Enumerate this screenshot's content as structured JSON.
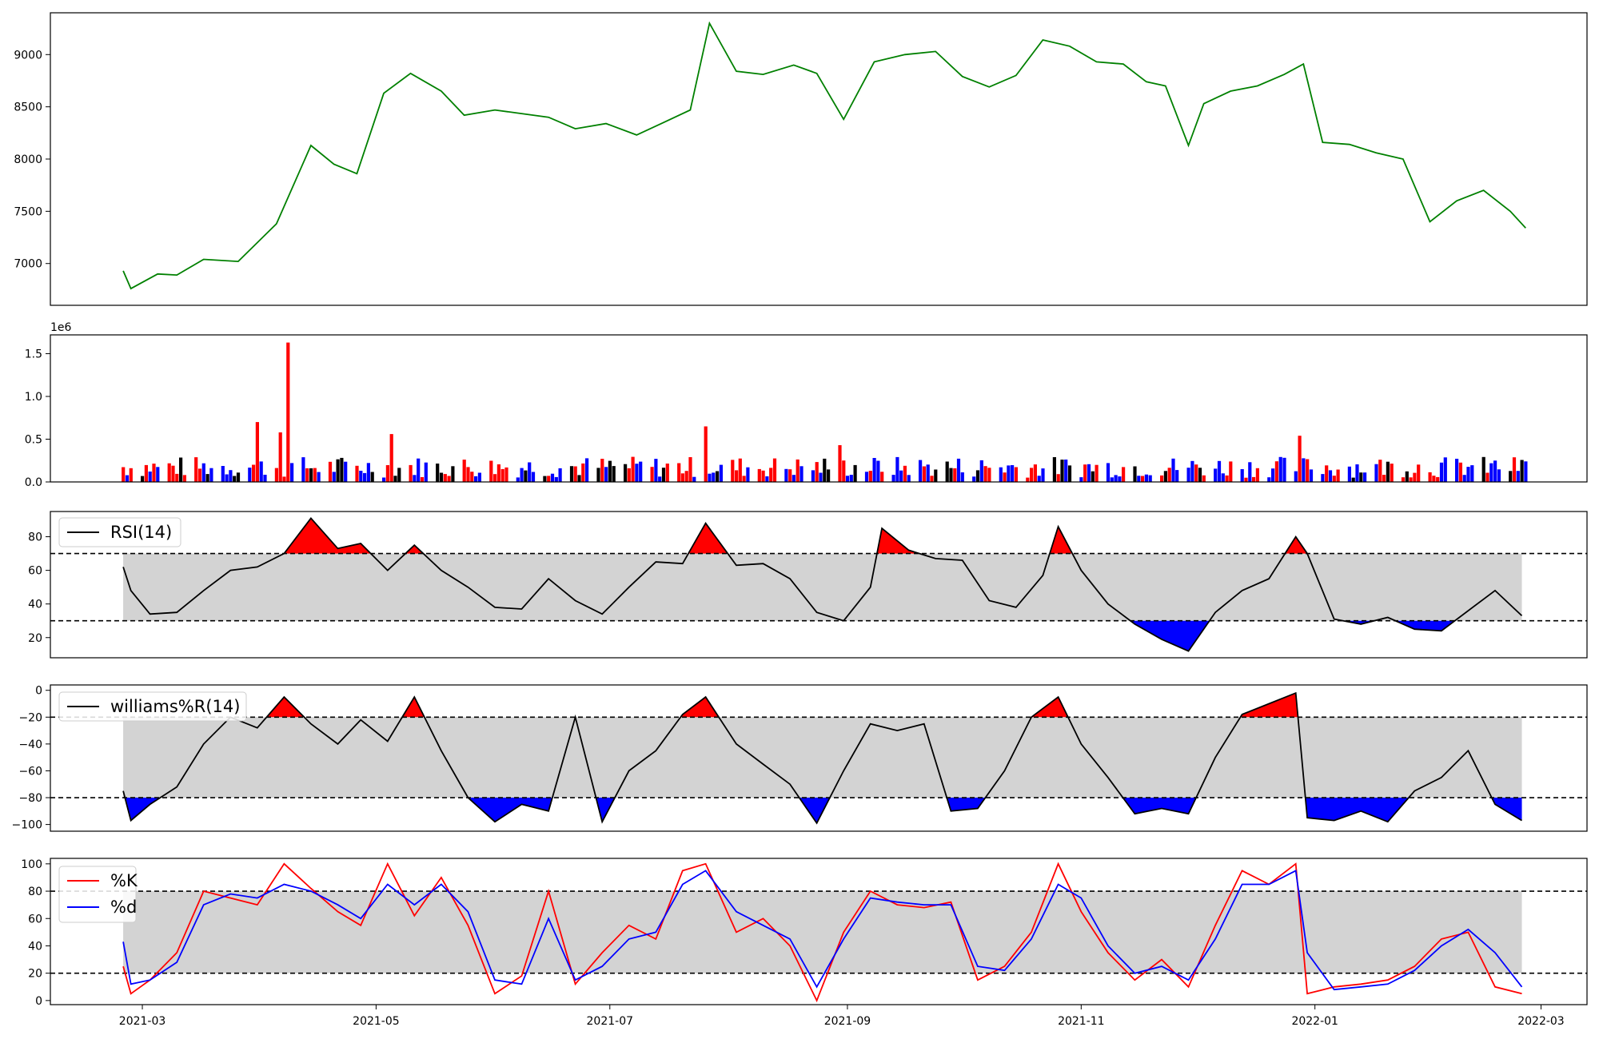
{
  "chart_data": [
    {
      "type": "line",
      "panel": "price",
      "title": "",
      "xlabel": "",
      "ylabel": "",
      "ylim": [
        6600,
        9400
      ],
      "yticks": [
        7000,
        7500,
        8000,
        8500,
        9000
      ],
      "line_color": "#008000",
      "series": [
        {
          "x": [
            "2021-02-24",
            "2021-02-26",
            "2021-03-05",
            "2021-03-10",
            "2021-03-17",
            "2021-03-26",
            "2021-04-05",
            "2021-04-14",
            "2021-04-20",
            "2021-04-26",
            "2021-05-03",
            "2021-05-10",
            "2021-05-18",
            "2021-05-24",
            "2021-06-01",
            "2021-06-07",
            "2021-06-15",
            "2021-06-22",
            "2021-06-30",
            "2021-07-08",
            "2021-07-15",
            "2021-07-22",
            "2021-07-27",
            "2021-08-03",
            "2021-08-10",
            "2021-08-18",
            "2021-08-24",
            "2021-08-31",
            "2021-09-08",
            "2021-09-16",
            "2021-09-24",
            "2021-10-01",
            "2021-10-08",
            "2021-10-15",
            "2021-10-22",
            "2021-10-29",
            "2021-11-05",
            "2021-11-12",
            "2021-11-18",
            "2021-11-23",
            "2021-11-29",
            "2021-12-03",
            "2021-12-10",
            "2021-12-17",
            "2021-12-24",
            "2021-12-29",
            "2022-01-03",
            "2022-01-10",
            "2022-01-17",
            "2022-01-24",
            "2022-01-31",
            "2022-02-07",
            "2022-02-14",
            "2022-02-21",
            "2022-02-25"
          ],
          "y": [
            6930,
            6760,
            6900,
            6890,
            7040,
            7020,
            7380,
            8130,
            7950,
            7860,
            8630,
            8820,
            8650,
            8420,
            8470,
            8440,
            8400,
            8290,
            8340,
            8230,
            8350,
            8470,
            9300,
            8840,
            8810,
            8900,
            8820,
            8380,
            8930,
            9000,
            9030,
            8790,
            8690,
            8800,
            9140,
            9080,
            8930,
            8910,
            8740,
            8700,
            8130,
            8530,
            8650,
            8700,
            8810,
            8910,
            8160,
            8140,
            8060,
            8000,
            7400,
            7600,
            7700,
            7500,
            7340
          ]
        }
      ]
    },
    {
      "type": "bar",
      "panel": "volume",
      "title": "",
      "xlabel": "",
      "ylabel": "",
      "exponent_label": "1e6",
      "ylim": [
        0,
        1.72
      ],
      "yticks": [
        "0.0",
        "0.5",
        "1.0",
        "1.5"
      ],
      "colors": {
        "up": "#ff0000",
        "down": "#0000ff",
        "flat": "#000000"
      },
      "highlights": [
        {
          "date": "2021-04-08",
          "value": 1.63
        },
        {
          "date": "2021-04-06",
          "value": 0.58
        },
        {
          "date": "2021-03-31",
          "value": 0.7
        },
        {
          "date": "2021-05-05",
          "value": 0.56
        },
        {
          "date": "2021-07-26",
          "value": 0.65
        },
        {
          "date": "2021-12-28",
          "value": 0.54
        },
        {
          "date": "2021-08-30",
          "value": 0.43
        }
      ],
      "baseline_range": [
        0.05,
        0.3
      ]
    },
    {
      "type": "line",
      "panel": "rsi",
      "legend": [
        "RSI(14)"
      ],
      "legend_position": "upper-left",
      "ylim": [
        8,
        95
      ],
      "yticks": [
        20,
        40,
        60,
        80
      ],
      "thresholds": [
        70,
        30
      ],
      "band_color": "#d3d3d3",
      "over_color": "#ff0000",
      "under_color": "#0000ff",
      "series": [
        {
          "name": "RSI(14)",
          "x": [
            "2021-02-24",
            "2021-02-26",
            "2021-03-03",
            "2021-03-10",
            "2021-03-17",
            "2021-03-24",
            "2021-03-31",
            "2021-04-07",
            "2021-04-14",
            "2021-04-21",
            "2021-04-27",
            "2021-05-04",
            "2021-05-11",
            "2021-05-18",
            "2021-05-25",
            "2021-06-01",
            "2021-06-08",
            "2021-06-15",
            "2021-06-22",
            "2021-06-29",
            "2021-07-06",
            "2021-07-13",
            "2021-07-20",
            "2021-07-26",
            "2021-08-03",
            "2021-08-10",
            "2021-08-17",
            "2021-08-24",
            "2021-08-31",
            "2021-09-07",
            "2021-09-10",
            "2021-09-17",
            "2021-09-24",
            "2021-10-01",
            "2021-10-08",
            "2021-10-15",
            "2021-10-22",
            "2021-10-26",
            "2021-11-01",
            "2021-11-08",
            "2021-11-15",
            "2021-11-22",
            "2021-11-29",
            "2021-12-06",
            "2021-12-13",
            "2021-12-20",
            "2021-12-27",
            "2021-12-30",
            "2022-01-06",
            "2022-01-13",
            "2022-01-20",
            "2022-01-27",
            "2022-02-03",
            "2022-02-10",
            "2022-02-17",
            "2022-02-24"
          ],
          "y": [
            62,
            48,
            34,
            35,
            48,
            60,
            62,
            70,
            91,
            73,
            76,
            60,
            75,
            60,
            50,
            38,
            37,
            55,
            42,
            34,
            50,
            65,
            64,
            88,
            63,
            64,
            55,
            35,
            30,
            50,
            85,
            72,
            67,
            66,
            42,
            38,
            57,
            86,
            60,
            40,
            28,
            19,
            12,
            35,
            48,
            55,
            80,
            70,
            31,
            28,
            32,
            25,
            24,
            36,
            48,
            33
          ]
        }
      ]
    },
    {
      "type": "line",
      "panel": "williams",
      "legend": [
        "williams%R(14)"
      ],
      "legend_position": "upper-left",
      "ylim": [
        -105,
        4
      ],
      "yticks": [
        0,
        -20,
        -40,
        -60,
        -80,
        -100
      ],
      "thresholds": [
        -20,
        -80
      ],
      "band_color": "#d3d3d3",
      "over_color": "#ff0000",
      "under_color": "#0000ff",
      "series": [
        {
          "name": "williams%R(14)",
          "x": [
            "2021-02-24",
            "2021-02-26",
            "2021-03-03",
            "2021-03-10",
            "2021-03-17",
            "2021-03-24",
            "2021-03-31",
            "2021-04-07",
            "2021-04-14",
            "2021-04-21",
            "2021-04-27",
            "2021-05-04",
            "2021-05-11",
            "2021-05-18",
            "2021-05-25",
            "2021-06-01",
            "2021-06-08",
            "2021-06-15",
            "2021-06-22",
            "2021-06-29",
            "2021-07-06",
            "2021-07-13",
            "2021-07-20",
            "2021-07-26",
            "2021-08-03",
            "2021-08-10",
            "2021-08-17",
            "2021-08-24",
            "2021-08-31",
            "2021-09-07",
            "2021-09-14",
            "2021-09-21",
            "2021-09-28",
            "2021-10-05",
            "2021-10-12",
            "2021-10-19",
            "2021-10-26",
            "2021-11-01",
            "2021-11-08",
            "2021-11-15",
            "2021-11-22",
            "2021-11-29",
            "2021-12-06",
            "2021-12-13",
            "2021-12-20",
            "2021-12-27",
            "2021-12-30",
            "2022-01-06",
            "2022-01-13",
            "2022-01-20",
            "2022-01-27",
            "2022-02-03",
            "2022-02-10",
            "2022-02-17",
            "2022-02-24"
          ],
          "y": [
            -75,
            -97,
            -85,
            -72,
            -40,
            -20,
            -28,
            -5,
            -25,
            -40,
            -22,
            -38,
            -5,
            -45,
            -80,
            -98,
            -85,
            -90,
            -20,
            -98,
            -60,
            -45,
            -18,
            -5,
            -40,
            -55,
            -70,
            -99,
            -60,
            -25,
            -30,
            -25,
            -90,
            -88,
            -60,
            -20,
            -5,
            -40,
            -65,
            -92,
            -88,
            -92,
            -50,
            -18,
            -10,
            -2,
            -95,
            -97,
            -90,
            -98,
            -75,
            -65,
            -45,
            -85,
            -97
          ]
        }
      ]
    },
    {
      "type": "line",
      "panel": "stochastic",
      "legend": [
        "%K",
        "%d"
      ],
      "legend_position": "upper-left",
      "ylim": [
        -3,
        104
      ],
      "yticks": [
        0,
        20,
        40,
        60,
        80,
        100
      ],
      "thresholds": [
        80,
        20
      ],
      "band_color": "#d3d3d3",
      "series": [
        {
          "name": "%K",
          "color": "#ff0000",
          "x": [
            "2021-02-24",
            "2021-02-26",
            "2021-03-03",
            "2021-03-10",
            "2021-03-17",
            "2021-03-24",
            "2021-03-31",
            "2021-04-07",
            "2021-04-14",
            "2021-04-21",
            "2021-04-27",
            "2021-05-04",
            "2021-05-11",
            "2021-05-18",
            "2021-05-25",
            "2021-06-01",
            "2021-06-08",
            "2021-06-15",
            "2021-06-22",
            "2021-06-29",
            "2021-07-06",
            "2021-07-13",
            "2021-07-20",
            "2021-07-26",
            "2021-08-03",
            "2021-08-10",
            "2021-08-17",
            "2021-08-24",
            "2021-08-31",
            "2021-09-07",
            "2021-09-14",
            "2021-09-21",
            "2021-09-28",
            "2021-10-05",
            "2021-10-12",
            "2021-10-19",
            "2021-10-26",
            "2021-11-01",
            "2021-11-08",
            "2021-11-15",
            "2021-11-22",
            "2021-11-29",
            "2021-12-06",
            "2021-12-13",
            "2021-12-20",
            "2021-12-27",
            "2021-12-30",
            "2022-01-06",
            "2022-01-13",
            "2022-01-20",
            "2022-01-27",
            "2022-02-03",
            "2022-02-10",
            "2022-02-17",
            "2022-02-24"
          ],
          "y": [
            25,
            5,
            15,
            35,
            80,
            75,
            70,
            100,
            82,
            65,
            55,
            100,
            62,
            90,
            55,
            5,
            18,
            80,
            12,
            35,
            55,
            45,
            95,
            100,
            50,
            60,
            40,
            0,
            50,
            80,
            70,
            68,
            72,
            15,
            25,
            50,
            100,
            65,
            35,
            15,
            30,
            10,
            55,
            95,
            85,
            100,
            5,
            10,
            12,
            15,
            25,
            45,
            50,
            10,
            5
          ]
        },
        {
          "name": "%d",
          "color": "#0000ff",
          "x": [
            "2021-02-24",
            "2021-02-26",
            "2021-03-03",
            "2021-03-10",
            "2021-03-17",
            "2021-03-24",
            "2021-03-31",
            "2021-04-07",
            "2021-04-14",
            "2021-04-21",
            "2021-04-27",
            "2021-05-04",
            "2021-05-11",
            "2021-05-18",
            "2021-05-25",
            "2021-06-01",
            "2021-06-08",
            "2021-06-15",
            "2021-06-22",
            "2021-06-29",
            "2021-07-06",
            "2021-07-13",
            "2021-07-20",
            "2021-07-26",
            "2021-08-03",
            "2021-08-10",
            "2021-08-17",
            "2021-08-24",
            "2021-08-31",
            "2021-09-07",
            "2021-09-14",
            "2021-09-21",
            "2021-09-28",
            "2021-10-05",
            "2021-10-12",
            "2021-10-19",
            "2021-10-26",
            "2021-11-01",
            "2021-11-08",
            "2021-11-15",
            "2021-11-22",
            "2021-11-29",
            "2021-12-06",
            "2021-12-13",
            "2021-12-20",
            "2021-12-27",
            "2021-12-30",
            "2022-01-06",
            "2022-01-13",
            "2022-01-20",
            "2022-01-27",
            "2022-02-03",
            "2022-02-10",
            "2022-02-17",
            "2022-02-24"
          ],
          "y": [
            43,
            12,
            15,
            28,
            70,
            78,
            75,
            85,
            80,
            70,
            60,
            85,
            70,
            85,
            65,
            15,
            12,
            60,
            15,
            25,
            45,
            50,
            85,
            95,
            65,
            55,
            45,
            10,
            45,
            75,
            72,
            70,
            70,
            25,
            22,
            45,
            85,
            75,
            40,
            20,
            25,
            15,
            45,
            85,
            85,
            95,
            35,
            8,
            10,
            12,
            22,
            40,
            52,
            35,
            10
          ]
        }
      ]
    }
  ],
  "x_axis": {
    "range": [
      "2021-02-05",
      "2022-03-13"
    ],
    "ticks": [
      "2021-03",
      "2021-05",
      "2021-07",
      "2021-09",
      "2021-11",
      "2022-01",
      "2022-03"
    ]
  }
}
